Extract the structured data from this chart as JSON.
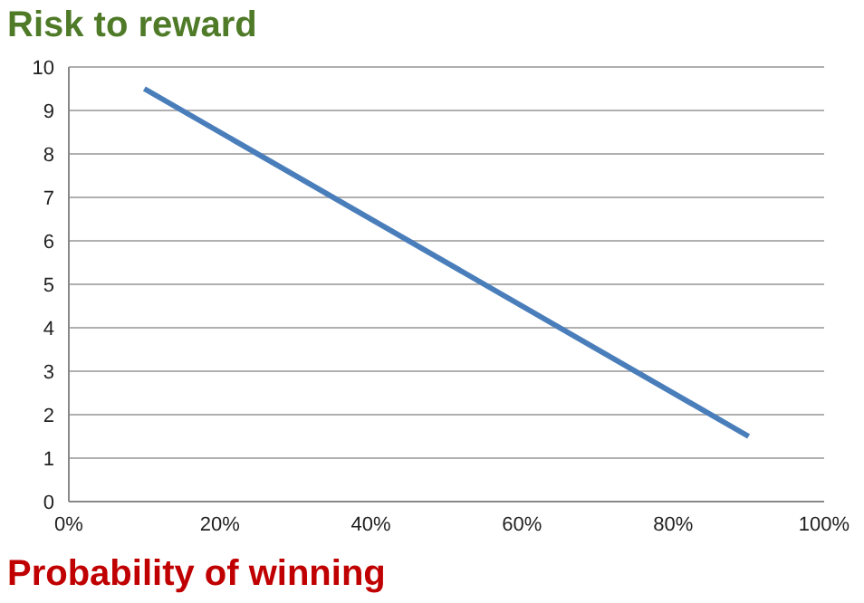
{
  "chart_data": {
    "type": "line",
    "ylabel": "Risk to reward",
    "xlabel": "Probability of winning",
    "x": [
      10,
      90
    ],
    "series": [
      {
        "color": "#4a7ebb",
        "values": [
          9.5,
          1.5
        ]
      }
    ],
    "xlim": [
      0,
      100
    ],
    "xticks": [
      {
        "value": 0,
        "label": "0%"
      },
      {
        "value": 20,
        "label": "20%"
      },
      {
        "value": 40,
        "label": "40%"
      },
      {
        "value": 60,
        "label": "60%"
      },
      {
        "value": 80,
        "label": "80%"
      },
      {
        "value": 100,
        "label": "100%"
      }
    ],
    "ylim": [
      0,
      10
    ],
    "yticks": [
      0,
      1,
      2,
      3,
      4,
      5,
      6,
      7,
      8,
      9,
      10
    ],
    "grid": "y",
    "marker": "none",
    "line_style": "solid"
  }
}
